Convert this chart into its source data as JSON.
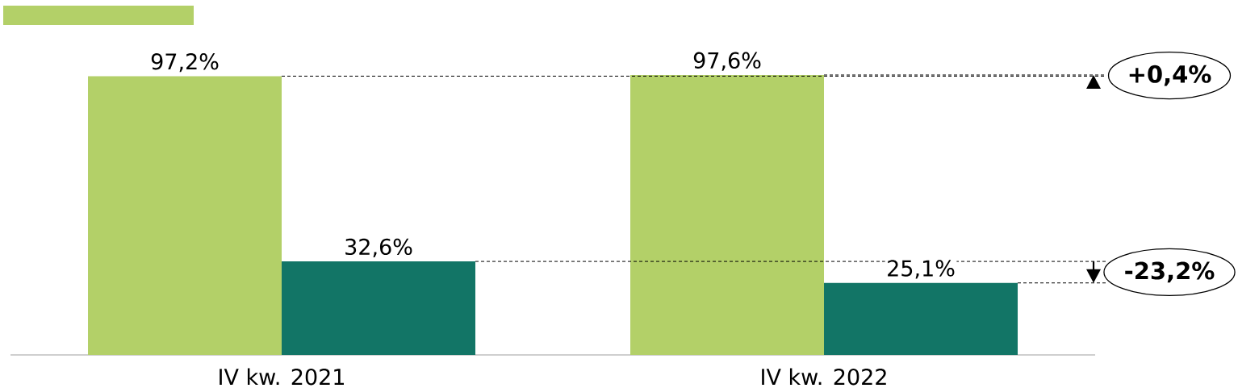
{
  "chart_data": {
    "type": "bar",
    "categories": [
      "IV kw. 2021",
      "IV kw. 2022"
    ],
    "series": [
      {
        "color": "#b3d068",
        "values": [
          97.2,
          97.6
        ],
        "value_labels": [
          "97,2%",
          "97,6%"
        ]
      },
      {
        "color": "#127566",
        "values": [
          32.6,
          25.1
        ],
        "value_labels": [
          "32,6%",
          "25,1%"
        ]
      }
    ],
    "ylim": [
      0,
      97.6
    ],
    "ref_lines": [
      {
        "axis": "y",
        "value": 97.2,
        "color": "#000000",
        "line_style": "dashed"
      },
      {
        "axis": "y",
        "value": 97.6,
        "color": "#000000",
        "line_style": "dashed"
      },
      {
        "axis": "y",
        "value": 32.6,
        "color": "#000000",
        "line_style": "dashed"
      },
      {
        "axis": "y",
        "value": 25.1,
        "color": "#000000",
        "line_style": "dashed"
      }
    ],
    "annotations": [
      "+0,4%",
      "-23,2%"
    ]
  }
}
